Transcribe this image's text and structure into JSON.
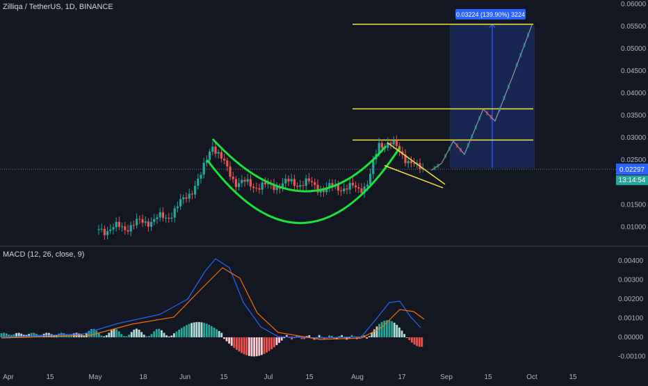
{
  "symbol": {
    "title": "Zilliqa / TetherUS, 1D, BINANCE"
  },
  "colors": {
    "background": "#131722",
    "up": "#26a69a",
    "down": "#ef5350",
    "pattern_green": "#19e33a",
    "levels_yellow": "#f7e23d",
    "measure_blue": "#2962ff",
    "macd_line": "#2962ff",
    "signal_line": "#ff6d00",
    "axis_text": "#b2b5be"
  },
  "price_axis": {
    "ticks": [
      "0.06000",
      "0.05500",
      "0.05000",
      "0.04500",
      "0.04000",
      "0.03500",
      "0.03000",
      "0.02500",
      "0.02000",
      "0.01500",
      "0.01000"
    ],
    "last_price": "0.02297",
    "countdown": "13:14:54"
  },
  "macd": {
    "label": "MACD (12, 26, close, 9)",
    "ticks": [
      "0.00400",
      "0.00300",
      "0.00200",
      "0.00100",
      "0.00000",
      "-0.00100"
    ]
  },
  "time_axis": {
    "labels": [
      "Apr",
      "15",
      "May",
      "18",
      "Jun",
      "15",
      "Jul",
      "15",
      "Aug",
      "17",
      "Sep",
      "15",
      "Oct",
      "15"
    ]
  },
  "measure": {
    "label": "0.03224 (139.90%) 3224"
  },
  "chart_data": {
    "type": "candlestick",
    "title": "Zilliqa / TetherUS, 1D, BINANCE",
    "y_range": [
      0.0085,
      0.06
    ],
    "horizontal_levels": [
      0.0295,
      0.0365,
      0.0555
    ],
    "key_points": [
      {
        "label": "Jun peak",
        "price": 0.03
      },
      {
        "label": "Jul low",
        "price": 0.0175
      },
      {
        "label": "Aug peak",
        "price": 0.0296
      },
      {
        "label": "last",
        "price": 0.02297
      }
    ],
    "projection_target": 0.0555,
    "macd_range": [
      -0.0013,
      0.0047
    ]
  }
}
